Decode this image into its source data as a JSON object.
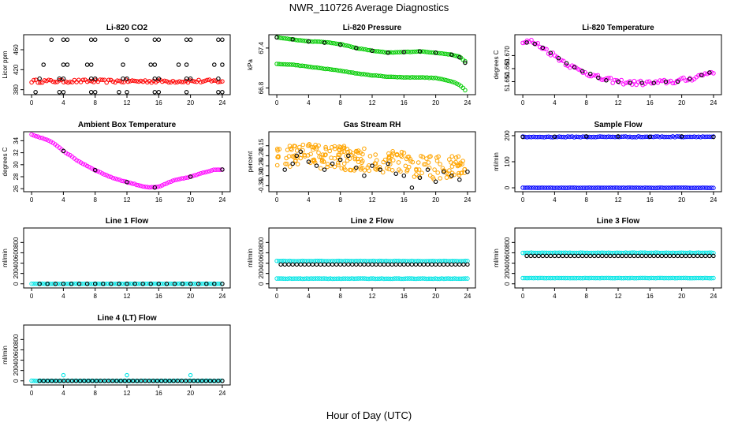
{
  "figure": {
    "title": "NWR_110726  Average Diagnostics",
    "xlabel": "Hour of Day (UTC)"
  },
  "colors": {
    "black": "#000000",
    "red": "#ff0000",
    "green": "#00cc00",
    "magenta": "#ff00ff",
    "orange": "#ffa500",
    "blue": "#0000ff",
    "cyan": "#00e5e5"
  },
  "chart_data": [
    {
      "type": "scatter",
      "title": "Li-820 CO2",
      "ylabel": "Licor ppm",
      "xlim": [
        -1,
        25
      ],
      "ylim": [
        370,
        490
      ],
      "xticks": [
        "0",
        "4",
        "8",
        "12",
        "16",
        "20",
        "24"
      ],
      "yticks": [
        {
          "v": 380,
          "label": "380"
        },
        {
          "v": 420,
          "label": "420"
        },
        {
          "v": 460,
          "label": "460"
        }
      ],
      "series": [
        {
          "color": "#ff0000",
          "style": "dense",
          "x": [
            0,
            24
          ],
          "y": [
            397,
            397
          ],
          "jitter": 3
        },
        {
          "color": "#000000",
          "style": "open",
          "x": [
            2.5,
            4,
            4.5,
            7.5,
            8,
            12,
            15.5,
            16,
            19.5,
            20,
            23.5,
            24
          ],
          "y": [
            480,
            480,
            480,
            480,
            480,
            480,
            480,
            480,
            480,
            480,
            480,
            480
          ]
        },
        {
          "color": "#000000",
          "style": "open",
          "x": [
            1.5,
            4,
            4.5,
            7,
            7.5,
            11.5,
            15,
            15.5,
            18.5,
            19.5,
            23,
            24
          ],
          "y": [
            430,
            430,
            430,
            430,
            430,
            430,
            430,
            430,
            430,
            430,
            430,
            430
          ]
        },
        {
          "color": "#000000",
          "style": "open",
          "x": [
            1,
            3.5,
            4,
            7.5,
            8,
            11.5,
            12,
            15.5,
            16,
            19.5,
            20,
            23.5
          ],
          "y": [
            402,
            402,
            402,
            402,
            402,
            402,
            402,
            402,
            402,
            402,
            402,
            402
          ]
        },
        {
          "color": "#000000",
          "style": "open",
          "x": [
            0.5,
            3.5,
            4,
            7.5,
            8,
            11,
            12,
            15.5,
            16,
            19.5,
            23.5,
            24
          ],
          "y": [
            375,
            375,
            375,
            375,
            375,
            375,
            375,
            375,
            375,
            375,
            375,
            375
          ]
        }
      ]
    },
    {
      "type": "scatter",
      "title": "Li-820 Pressure",
      "ylabel": "kPa",
      "xlim": [
        -1,
        25
      ],
      "ylim": [
        66.7,
        67.6
      ],
      "xticks": [
        "0",
        "4",
        "8",
        "12",
        "16",
        "20",
        "24"
      ],
      "yticks": [
        {
          "v": 66.8,
          "label": "66.8"
        },
        {
          "v": 67.4,
          "label": "67.4"
        }
      ],
      "series": [
        {
          "color": "#00cc00",
          "style": "dense",
          "x": [
            0,
            2,
            4,
            6,
            8,
            10,
            12,
            14,
            16,
            18,
            20,
            22,
            23,
            23.7
          ],
          "y": [
            67.56,
            67.53,
            67.5,
            67.49,
            67.46,
            67.4,
            67.36,
            67.33,
            67.34,
            67.35,
            67.33,
            67.3,
            67.27,
            67.2
          ],
          "jitter": 0.003
        },
        {
          "color": "#000000",
          "style": "open",
          "x": [
            0,
            2,
            4,
            6,
            8,
            10,
            12,
            14,
            16,
            18,
            20,
            22,
            23,
            23.7
          ],
          "y": [
            67.56,
            67.53,
            67.5,
            67.48,
            67.45,
            67.4,
            67.36,
            67.33,
            67.34,
            67.35,
            67.33,
            67.3,
            67.26,
            67.18
          ]
        },
        {
          "color": "#00cc00",
          "style": "dense",
          "x": [
            0,
            2,
            4,
            6,
            8,
            10,
            12,
            14,
            16,
            18,
            20,
            22,
            23,
            23.7
          ],
          "y": [
            67.16,
            67.15,
            67.12,
            67.09,
            67.06,
            67.02,
            66.99,
            66.97,
            66.96,
            66.96,
            66.95,
            66.9,
            66.85,
            66.77
          ],
          "jitter": 0.003
        }
      ]
    },
    {
      "type": "scatter",
      "title": "Li-820 Temperature",
      "ylabel": "degrees C",
      "xlim": [
        -1,
        25
      ],
      "ylim": [
        51.64,
        51.686
      ],
      "xticks": [
        "0",
        "4",
        "8",
        "12",
        "16",
        "20",
        "24"
      ],
      "yticks": [
        {
          "v": 51.65,
          "label": "51.650"
        },
        {
          "v": 51.66,
          "label": "51.660"
        },
        {
          "v": 51.67,
          "label": "51.670"
        }
      ],
      "series": [
        {
          "color": "#ff00ff",
          "style": "dense",
          "x": [
            0,
            1,
            2,
            3,
            4,
            5,
            6,
            7,
            8,
            9,
            10,
            12,
            14,
            16,
            17,
            18,
            19,
            20,
            21,
            22,
            23,
            24
          ],
          "y": [
            51.68,
            51.681,
            51.678,
            51.674,
            51.67,
            51.666,
            51.662,
            51.659,
            51.657,
            51.654,
            51.652,
            51.65,
            51.649,
            51.649,
            51.649,
            51.65,
            51.65,
            51.651,
            51.652,
            51.654,
            51.656,
            51.658
          ],
          "jitter": 0.0018
        },
        {
          "color": "#000000",
          "style": "open",
          "x": [
            0.5,
            1.5,
            2.5,
            3.5,
            4.5,
            5.5,
            6.5,
            7.5,
            8.5,
            9.5,
            10.5,
            12,
            13.5,
            15,
            16.5,
            18,
            19.5,
            21,
            22.5,
            23.5
          ],
          "y": [
            51.68,
            51.679,
            51.676,
            51.672,
            51.668,
            51.664,
            51.661,
            51.658,
            51.656,
            51.653,
            51.651,
            51.65,
            51.649,
            51.649,
            51.649,
            51.65,
            51.65,
            51.652,
            51.655,
            51.657
          ]
        }
      ]
    },
    {
      "type": "scatter",
      "title": "Ambient Box Temperature",
      "ylabel": "degrees C",
      "xlim": [
        -1,
        25
      ],
      "ylim": [
        25.5,
        35.5
      ],
      "xticks": [
        "0",
        "4",
        "8",
        "12",
        "16",
        "20",
        "24"
      ],
      "yticks": [
        {
          "v": 26,
          "label": "26"
        },
        {
          "v": 28,
          "label": "28"
        },
        {
          "v": 30,
          "label": "30"
        },
        {
          "v": 32,
          "label": "32"
        },
        {
          "v": 34,
          "label": "34"
        }
      ],
      "series": [
        {
          "color": "#ff00ff",
          "style": "dense",
          "x": [
            0,
            1,
            2,
            3,
            4,
            6,
            8,
            10,
            12,
            14,
            15,
            16,
            17,
            18,
            20,
            22,
            23,
            24
          ],
          "y": [
            35,
            34.6,
            34.1,
            33.4,
            32.3,
            30.5,
            29.1,
            27.9,
            27.1,
            26.4,
            26.2,
            26.3,
            26.9,
            27.4,
            28,
            28.8,
            29.2,
            29.2
          ],
          "jitter": 0.05
        },
        {
          "color": "#000000",
          "style": "open",
          "x": [
            4,
            8,
            12,
            15.5,
            20,
            24
          ],
          "y": [
            32.3,
            29.1,
            27.1,
            26.2,
            28,
            29.2
          ]
        }
      ]
    },
    {
      "type": "scatter",
      "title": "Gas Stream RH",
      "ylabel": "percent",
      "xlim": [
        -1,
        25
      ],
      "ylim": [
        -0.38,
        -0.08
      ],
      "xticks": [
        "0",
        "4",
        "8",
        "12",
        "16",
        "20",
        "24"
      ],
      "yticks": [
        {
          "v": -0.35,
          "label": "-0.35"
        },
        {
          "v": -0.3,
          "label": "-0.30"
        },
        {
          "v": -0.25,
          "label": "-0.25"
        },
        {
          "v": -0.2,
          "label": "-0.20"
        },
        {
          "v": -0.15,
          "label": "-0.15"
        }
      ],
      "series": [
        {
          "color": "#ffa500",
          "style": "noise",
          "x": [
            0,
            4,
            8,
            12,
            16,
            20,
            24
          ],
          "y": [
            -0.2,
            -0.2,
            -0.21,
            -0.22,
            -0.24,
            -0.26,
            -0.25
          ],
          "spread": 0.06
        },
        {
          "color": "#000000",
          "style": "open",
          "x": [
            1,
            2,
            2.5,
            3,
            4,
            5,
            6,
            7,
            8,
            9,
            10,
            11,
            12,
            13,
            14,
            15,
            16,
            17,
            18,
            19,
            20,
            21,
            22,
            23,
            24
          ],
          "y": [
            -0.27,
            -0.24,
            -0.2,
            -0.18,
            -0.23,
            -0.25,
            -0.27,
            -0.24,
            -0.22,
            -0.2,
            -0.26,
            -0.3,
            -0.25,
            -0.27,
            -0.24,
            -0.29,
            -0.3,
            -0.36,
            -0.31,
            -0.27,
            -0.33,
            -0.28,
            -0.3,
            -0.32,
            -0.28
          ]
        }
      ]
    },
    {
      "type": "scatter",
      "title": "Sample Flow",
      "ylabel": "ml/min",
      "xlim": [
        -1,
        25
      ],
      "ylim": [
        -15,
        215
      ],
      "xticks": [
        "0",
        "4",
        "8",
        "12",
        "16",
        "20",
        "24"
      ],
      "yticks": [
        {
          "v": 0,
          "label": "0"
        },
        {
          "v": 100,
          "label": "100"
        },
        {
          "v": 200,
          "label": "200"
        }
      ],
      "series": [
        {
          "color": "#0000ff",
          "style": "dense",
          "x": [
            0,
            24
          ],
          "y": [
            195,
            196
          ],
          "jitter": 1.5
        },
        {
          "color": "#000000",
          "style": "open",
          "x": [
            0,
            4,
            8,
            12,
            16,
            20,
            24
          ],
          "y": [
            195,
            196,
            197,
            197,
            196,
            197,
            195
          ]
        },
        {
          "color": "#0000ff",
          "style": "dense",
          "x": [
            0,
            24
          ],
          "y": [
            0,
            0
          ],
          "jitter": 0.5
        }
      ]
    },
    {
      "type": "scatter",
      "title": "Line 1 Flow",
      "ylabel": "ml/min",
      "xlim": [
        -1,
        25
      ],
      "ylim": [
        -80,
        1080
      ],
      "xticks": [
        "0",
        "4",
        "8",
        "12",
        "16",
        "20",
        "24"
      ],
      "yticks": [
        {
          "v": 0,
          "label": "0"
        },
        {
          "v": 200,
          "label": "200"
        },
        {
          "v": 400,
          "label": "400"
        },
        {
          "v": 600,
          "label": "600"
        },
        {
          "v": 800,
          "label": "800"
        }
      ],
      "series": [
        {
          "color": "#00e5e5",
          "style": "dense",
          "x": [
            0,
            24
          ],
          "y": [
            0,
            0
          ],
          "jitter": 2
        },
        {
          "color": "#000000",
          "style": "open",
          "x": [
            1,
            2,
            3,
            4,
            5,
            6,
            7,
            8,
            9,
            10,
            11,
            12,
            13,
            14,
            15,
            16,
            17,
            18,
            19,
            20,
            21,
            22,
            23,
            24
          ],
          "y": [
            0,
            0,
            0,
            0,
            0,
            0,
            0,
            0,
            0,
            0,
            0,
            0,
            0,
            0,
            0,
            0,
            0,
            0,
            0,
            0,
            0,
            0,
            0,
            0
          ]
        }
      ]
    },
    {
      "type": "scatter",
      "title": "Line 2 Flow",
      "ylabel": "ml/min",
      "xlim": [
        -1,
        25
      ],
      "ylim": [
        -80,
        1080
      ],
      "xticks": [
        "0",
        "4",
        "8",
        "12",
        "16",
        "20",
        "24"
      ],
      "yticks": [
        {
          "v": 0,
          "label": "0"
        },
        {
          "v": 200,
          "label": "200"
        },
        {
          "v": 400,
          "label": "400"
        },
        {
          "v": 600,
          "label": "600"
        },
        {
          "v": 800,
          "label": "800"
        }
      ],
      "series": [
        {
          "color": "#00e5e5",
          "style": "dense",
          "x": [
            0,
            24
          ],
          "y": [
            440,
            440
          ],
          "jitter": 4
        },
        {
          "color": "#00e5e5",
          "style": "dense",
          "x": [
            0,
            24
          ],
          "y": [
            100,
            100
          ],
          "jitter": 3
        },
        {
          "color": "#000000",
          "style": "open",
          "x": [
            0.5,
            24
          ],
          "y": [
            375,
            375
          ],
          "count": 48
        }
      ]
    },
    {
      "type": "scatter",
      "title": "Line 3 Flow",
      "ylabel": "ml/min",
      "xlim": [
        -1,
        25
      ],
      "ylim": [
        -80,
        1080
      ],
      "xticks": [
        "0",
        "4",
        "8",
        "12",
        "16",
        "20",
        "24"
      ],
      "yticks": [
        {
          "v": 0,
          "label": "0"
        },
        {
          "v": 200,
          "label": "200"
        },
        {
          "v": 400,
          "label": "400"
        },
        {
          "v": 600,
          "label": "600"
        },
        {
          "v": 800,
          "label": "800"
        }
      ],
      "series": [
        {
          "color": "#00e5e5",
          "style": "dense",
          "x": [
            0,
            24
          ],
          "y": [
            600,
            600
          ],
          "jitter": 4
        },
        {
          "color": "#00e5e5",
          "style": "dense",
          "x": [
            0,
            24
          ],
          "y": [
            110,
            110
          ],
          "jitter": 3
        },
        {
          "color": "#000000",
          "style": "open",
          "x": [
            0.5,
            24
          ],
          "y": [
            540,
            540
          ],
          "count": 48
        }
      ]
    },
    {
      "type": "scatter",
      "title": "Line 4 (LT) Flow",
      "ylabel": "ml/min",
      "xlim": [
        -1,
        25
      ],
      "ylim": [
        -80,
        1080
      ],
      "xticks": [
        "0",
        "4",
        "8",
        "12",
        "16",
        "20",
        "24"
      ],
      "yticks": [
        {
          "v": 0,
          "label": "0"
        },
        {
          "v": 200,
          "label": "200"
        },
        {
          "v": 400,
          "label": "400"
        },
        {
          "v": 600,
          "label": "600"
        },
        {
          "v": 800,
          "label": "800"
        }
      ],
      "series": [
        {
          "color": "#00e5e5",
          "style": "dense",
          "x": [
            0,
            24
          ],
          "y": [
            0,
            0
          ],
          "jitter": 2
        },
        {
          "color": "#00e5e5",
          "style": "open",
          "x": [
            4,
            12,
            20
          ],
          "y": [
            110,
            110,
            110
          ]
        },
        {
          "color": "#000000",
          "style": "open",
          "x": [
            1,
            24
          ],
          "y": [
            0,
            0
          ],
          "count": 46
        }
      ]
    }
  ]
}
